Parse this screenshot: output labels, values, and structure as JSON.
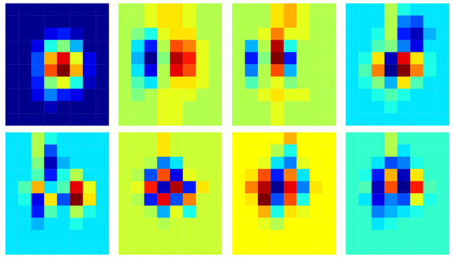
{
  "chart_data": [
    {
      "type": "heatmap",
      "tick_labels": false,
      "zlim": [
        0,
        1
      ],
      "cells": [
        [
          0,
          0,
          0,
          0,
          0,
          0,
          0,
          0
        ],
        [
          0,
          0,
          0,
          0,
          0,
          0,
          0,
          0
        ],
        [
          0,
          0,
          0,
          0.1,
          0.15,
          0.05,
          0,
          0
        ],
        [
          0,
          0,
          0.1,
          0.4,
          0.5,
          0.3,
          0,
          0
        ],
        [
          0,
          0,
          0.2,
          0.7,
          0.9,
          0.6,
          0.1,
          0
        ],
        [
          0,
          0,
          0.2,
          0.8,
          1,
          0.7,
          0.1,
          0
        ],
        [
          0,
          0,
          0.15,
          0.5,
          0.6,
          0.4,
          0.05,
          0
        ],
        [
          0,
          0,
          0.1,
          0.25,
          0.15,
          0.1,
          0,
          0
        ],
        [
          0,
          0,
          0,
          0.05,
          0,
          0,
          0,
          0
        ],
        [
          0,
          0,
          0,
          0,
          0,
          0,
          0,
          0
        ]
      ]
    },
    {
      "type": "heatmap",
      "tick_labels": false,
      "zlim": [
        -1,
        1
      ],
      "cells": [
        [
          0.1,
          0.1,
          0.2,
          0.3,
          0.3,
          0.2,
          0.1,
          0.1
        ],
        [
          0.1,
          0.1,
          0.2,
          0.3,
          0.3,
          0.2,
          0.1,
          0.1
        ],
        [
          0.1,
          0,
          -0.2,
          0.2,
          0.3,
          0.3,
          0.1,
          0.1
        ],
        [
          0.1,
          -0.3,
          -0.7,
          0.1,
          0.6,
          0.5,
          0.2,
          0.1
        ],
        [
          0.1,
          -0.4,
          -1,
          0,
          0.9,
          0.7,
          0.2,
          0.1
        ],
        [
          0.1,
          -0.3,
          -0.8,
          0.1,
          0.8,
          0.6,
          0.2,
          0.1
        ],
        [
          0.1,
          -0.1,
          -0.3,
          0.1,
          0.3,
          0.3,
          0.2,
          0.1
        ],
        [
          0.1,
          0,
          0.1,
          0.2,
          0.2,
          0.2,
          0.1,
          0.1
        ],
        [
          0.1,
          0.1,
          0.1,
          0.2,
          0.2,
          0.1,
          0.1,
          0.1
        ],
        [
          0.1,
          0.1,
          0.1,
          0.2,
          0.2,
          0.1,
          0.1,
          0.1
        ]
      ]
    },
    {
      "type": "heatmap",
      "tick_labels": false,
      "zlim": [
        -1,
        1
      ],
      "cells": [
        [
          0.1,
          0.1,
          0.1,
          0.3,
          0.4,
          0.2,
          0.1,
          0.1
        ],
        [
          0.1,
          0.1,
          0.1,
          0.3,
          0.4,
          0.2,
          0.1,
          0.1
        ],
        [
          0.1,
          0.1,
          0.2,
          0.5,
          0.2,
          0.2,
          0.1,
          0.1
        ],
        [
          0.1,
          -0.4,
          0.1,
          0.9,
          -0.2,
          0.1,
          0.1,
          0.1
        ],
        [
          0.1,
          -0.7,
          0,
          1,
          -0.7,
          0.1,
          0.1,
          0.1
        ],
        [
          0.1,
          -0.5,
          0.1,
          0.6,
          -0.4,
          0.1,
          0.1,
          0.1
        ],
        [
          0.1,
          -0.1,
          0.1,
          0.2,
          0,
          0.1,
          0.1,
          0.1
        ],
        [
          0.1,
          0.1,
          0.2,
          0.3,
          0.2,
          0.2,
          0.1,
          0.1
        ],
        [
          0.1,
          0.1,
          0.1,
          0.2,
          0.1,
          0.1,
          0.1,
          0.1
        ],
        [
          0.1,
          0.1,
          0.1,
          0.2,
          0.1,
          0.1,
          0.1,
          0.1
        ]
      ]
    },
    {
      "type": "heatmap",
      "tick_labels": false,
      "zlim": [
        -1,
        1
      ],
      "cells": [
        [
          -0.3,
          -0.3,
          -0.3,
          0.1,
          -0.2,
          -0.3,
          -0.3,
          -0.3
        ],
        [
          -0.3,
          -0.3,
          -0.3,
          0.1,
          -0.5,
          -0.6,
          -0.3,
          -0.3
        ],
        [
          -0.3,
          -0.3,
          -0.2,
          0.1,
          -0.7,
          -0.9,
          -0.4,
          -0.3
        ],
        [
          -0.3,
          -0.3,
          -0.1,
          0,
          -0.5,
          -0.8,
          -0.3,
          -0.3
        ],
        [
          -0.3,
          -0.2,
          0.3,
          -0.9,
          0.8,
          0.3,
          -0.2,
          -0.3
        ],
        [
          -0.3,
          -0.1,
          0.5,
          -1,
          1,
          0.5,
          -0.2,
          -0.3
        ],
        [
          -0.3,
          -0.2,
          0,
          -0.4,
          0.3,
          -0.1,
          -0.3,
          -0.3
        ],
        [
          -0.3,
          -0.3,
          -0.2,
          -0.1,
          -0.2,
          -0.3,
          -0.3,
          -0.3
        ],
        [
          -0.3,
          -0.3,
          -0.3,
          -0.2,
          -0.3,
          -0.3,
          -0.3,
          -0.3
        ],
        [
          -0.3,
          -0.3,
          -0.3,
          -0.3,
          -0.3,
          -0.3,
          -0.3,
          -0.3
        ]
      ]
    },
    {
      "type": "heatmap",
      "tick_labels": false,
      "zlim": [
        -1,
        1
      ],
      "cells": [
        [
          -0.3,
          -0.3,
          0.1,
          -0.2,
          -0.3,
          -0.3,
          -0.3,
          -0.3
        ],
        [
          -0.3,
          -0.3,
          0.1,
          -0.6,
          -0.3,
          -0.3,
          -0.3,
          -0.3
        ],
        [
          -0.3,
          -0.3,
          0,
          -0.9,
          -0.4,
          -0.3,
          -0.3,
          -0.3
        ],
        [
          -0.3,
          -0.3,
          -0.1,
          -0.7,
          -0.2,
          0.1,
          -0.3,
          -0.3
        ],
        [
          -0.3,
          -0.1,
          0.4,
          -0.3,
          -0.1,
          0.8,
          0.2,
          -0.3
        ],
        [
          -0.3,
          -0.2,
          -0.8,
          0.3,
          -0.6,
          1,
          0.3,
          -0.3
        ],
        [
          -0.3,
          -0.3,
          -0.7,
          -0.1,
          -0.3,
          0.1,
          -0.2,
          -0.3
        ],
        [
          -0.3,
          -0.3,
          -0.4,
          -0.3,
          -0.3,
          -0.2,
          -0.3,
          -0.3
        ],
        [
          -0.3,
          -0.3,
          -0.3,
          -0.3,
          -0.3,
          -0.3,
          -0.3,
          -0.3
        ],
        [
          -0.3,
          -0.3,
          -0.3,
          -0.3,
          -0.3,
          -0.3,
          -0.3,
          -0.3
        ]
      ]
    },
    {
      "type": "heatmap",
      "tick_labels": false,
      "zlim": [
        -1,
        1
      ],
      "cells": [
        [
          0.15,
          0.15,
          0.15,
          0.3,
          0.15,
          0.15,
          0.15,
          0.15
        ],
        [
          0.15,
          0.15,
          0.15,
          0.3,
          0.15,
          0.15,
          0.15,
          0.15
        ],
        [
          0.15,
          0.15,
          0.1,
          -0.5,
          -0.3,
          0.15,
          0.15,
          0.15
        ],
        [
          0.15,
          0.1,
          -0.6,
          0.6,
          -0.8,
          0.2,
          0.15,
          0.15
        ],
        [
          0.15,
          0.2,
          0.7,
          -0.9,
          0.9,
          -0.7,
          0.3,
          0.15
        ],
        [
          0.15,
          0.1,
          -0.7,
          0.8,
          -0.6,
          0.5,
          0.15,
          0.15
        ],
        [
          0.15,
          0.15,
          0.1,
          -0.4,
          0.2,
          -0.2,
          0.15,
          0.15
        ],
        [
          0.15,
          0.15,
          0.15,
          0.1,
          0.15,
          0.15,
          0.15,
          0.15
        ],
        [
          0.15,
          0.15,
          0.15,
          0.15,
          0.15,
          0.15,
          0.15,
          0.15
        ],
        [
          0.15,
          0.15,
          0.15,
          0.15,
          0.15,
          0.15,
          0.15,
          0.15
        ]
      ]
    },
    {
      "type": "heatmap",
      "tick_labels": false,
      "zlim": [
        -1,
        1
      ],
      "cells": [
        [
          0.25,
          0.25,
          0.25,
          0.25,
          0.4,
          0.25,
          0.25,
          0.25
        ],
        [
          0.25,
          0.25,
          0.25,
          0.1,
          -0.2,
          0.25,
          0.25,
          0.25
        ],
        [
          0.25,
          0.25,
          0.2,
          -0.3,
          -0.5,
          0.2,
          0.25,
          0.25
        ],
        [
          0.25,
          0.3,
          0.6,
          -0.7,
          0.5,
          -0.3,
          0.25,
          0.25
        ],
        [
          0.25,
          0.5,
          0.9,
          -1,
          0.8,
          -0.5,
          0.3,
          0.25
        ],
        [
          0.25,
          0.3,
          1,
          -0.6,
          0.6,
          -0.2,
          0.25,
          0.25
        ],
        [
          0.25,
          0.25,
          0.4,
          -0.2,
          0.3,
          0.2,
          0.25,
          0.25
        ],
        [
          0.25,
          0.25,
          0.2,
          0.1,
          0.25,
          0.25,
          0.25,
          0.25
        ],
        [
          0.25,
          0.25,
          0.25,
          0.25,
          0.25,
          0.25,
          0.25,
          0.25
        ],
        [
          0.25,
          0.25,
          0.25,
          0.25,
          0.25,
          0.25,
          0.25,
          0.25
        ]
      ]
    },
    {
      "type": "heatmap",
      "tick_labels": false,
      "zlim": [
        -1,
        1
      ],
      "cells": [
        [
          -0.15,
          -0.15,
          -0.15,
          0.1,
          -0.15,
          -0.15,
          -0.15,
          -0.15
        ],
        [
          -0.15,
          -0.15,
          -0.15,
          0.1,
          -0.3,
          -0.15,
          -0.15,
          -0.15
        ],
        [
          -0.15,
          -0.15,
          -0.3,
          -0.6,
          -0.5,
          -0.2,
          -0.15,
          -0.15
        ],
        [
          -0.15,
          -0.2,
          -0.7,
          0.4,
          -0.9,
          0.3,
          -0.15,
          -0.15
        ],
        [
          -0.15,
          -0.1,
          -0.9,
          0.6,
          -1,
          0.7,
          -0.1,
          -0.15
        ],
        [
          -0.15,
          -0.3,
          -0.8,
          -0.5,
          -0.6,
          0.2,
          -0.2,
          -0.15
        ],
        [
          -0.15,
          -0.15,
          -0.5,
          -0.4,
          -0.3,
          -0.2,
          -0.15,
          -0.15
        ],
        [
          -0.15,
          -0.15,
          -0.3,
          -0.2,
          -0.15,
          -0.15,
          -0.15,
          -0.15
        ],
        [
          -0.15,
          -0.15,
          -0.15,
          -0.15,
          -0.15,
          -0.15,
          -0.15,
          -0.15
        ],
        [
          -0.15,
          -0.15,
          -0.15,
          -0.15,
          -0.15,
          -0.15,
          -0.15,
          -0.15
        ]
      ]
    }
  ]
}
